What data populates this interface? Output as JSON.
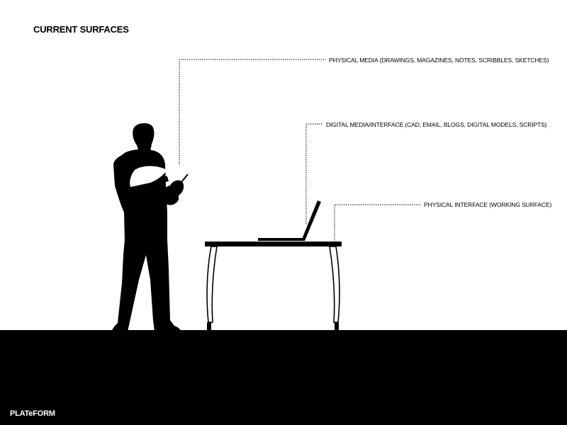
{
  "title": "CURRENT SURFACES",
  "labels": {
    "physical_media": "PHYSICAL MEDIA (DRAWINGS, MAGAZINES, NOTES, SCRIBBLES, SKETCHES)",
    "digital_media": "DIGITAL MEDIA/INTERFACE (CAD, EMAIL, BLOGS, DIGITAL MODELS, SCRIPTS)",
    "physical_interface": "PHYSICAL INTERFACE (WORKING SURFACE)"
  },
  "brand": "PLATeFORM",
  "colors": {
    "background": "#ffffff",
    "ink": "#000000"
  }
}
